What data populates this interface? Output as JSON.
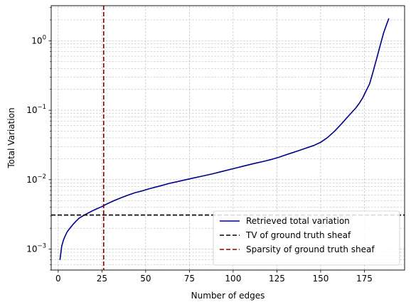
{
  "chart_data": {
    "type": "line",
    "xlabel": "Number of edges",
    "ylabel": "Total Variation",
    "xlim": [
      -4,
      198
    ],
    "ylim": [
      0.0005,
      3.2
    ],
    "yscale": "log",
    "grid": true,
    "grid_minor": true,
    "legend_placement": "lower-right",
    "x_ticks": [
      0,
      25,
      50,
      75,
      100,
      125,
      150,
      175
    ],
    "x_tick_labels": [
      "0",
      "25",
      "50",
      "75",
      "100",
      "125",
      "150",
      "175"
    ],
    "y_ticks": [
      0.001,
      0.01,
      0.1,
      1
    ],
    "y_tick_base": "10",
    "y_tick_exponents": [
      "−3",
      "−2",
      "−1",
      "0"
    ],
    "series": [
      {
        "name": "Retrieved total variation",
        "color": "#00008b",
        "style": "solid",
        "x": [
          1,
          2,
          3,
          4,
          5,
          6,
          8,
          10,
          12,
          14,
          16,
          18,
          20,
          22,
          25,
          28,
          32,
          36,
          40,
          44,
          48,
          52,
          58,
          64,
          70,
          76,
          82,
          88,
          94,
          100,
          106,
          112,
          118,
          122,
          126,
          130,
          134,
          138,
          142,
          146,
          150,
          154,
          158,
          162,
          166,
          170,
          172,
          174,
          176,
          178,
          180,
          182,
          184,
          186,
          188,
          189
        ],
        "y": [
          0.0007,
          0.0011,
          0.00135,
          0.00155,
          0.00175,
          0.0019,
          0.0022,
          0.0025,
          0.0028,
          0.003,
          0.0032,
          0.0034,
          0.0036,
          0.0038,
          0.0041,
          0.0045,
          0.005,
          0.0055,
          0.006,
          0.0065,
          0.0069,
          0.0074,
          0.0081,
          0.0089,
          0.0096,
          0.0104,
          0.0112,
          0.0121,
          0.0132,
          0.0144,
          0.0157,
          0.0171,
          0.0185,
          0.0196,
          0.021,
          0.0227,
          0.0245,
          0.0265,
          0.0287,
          0.031,
          0.0345,
          0.0405,
          0.05,
          0.064,
          0.083,
          0.107,
          0.125,
          0.15,
          0.19,
          0.24,
          0.36,
          0.55,
          0.85,
          1.3,
          1.8,
          2.1
        ]
      }
    ],
    "reference_lines": [
      {
        "name": "TV of ground truth sheaf",
        "orientation": "horizontal",
        "value": 0.0031,
        "color": "#000000",
        "style": "dashed"
      },
      {
        "name": "Sparsity of ground truth sheaf",
        "orientation": "vertical",
        "value": 26,
        "color": "#8b0000",
        "style": "dashed"
      }
    ]
  }
}
